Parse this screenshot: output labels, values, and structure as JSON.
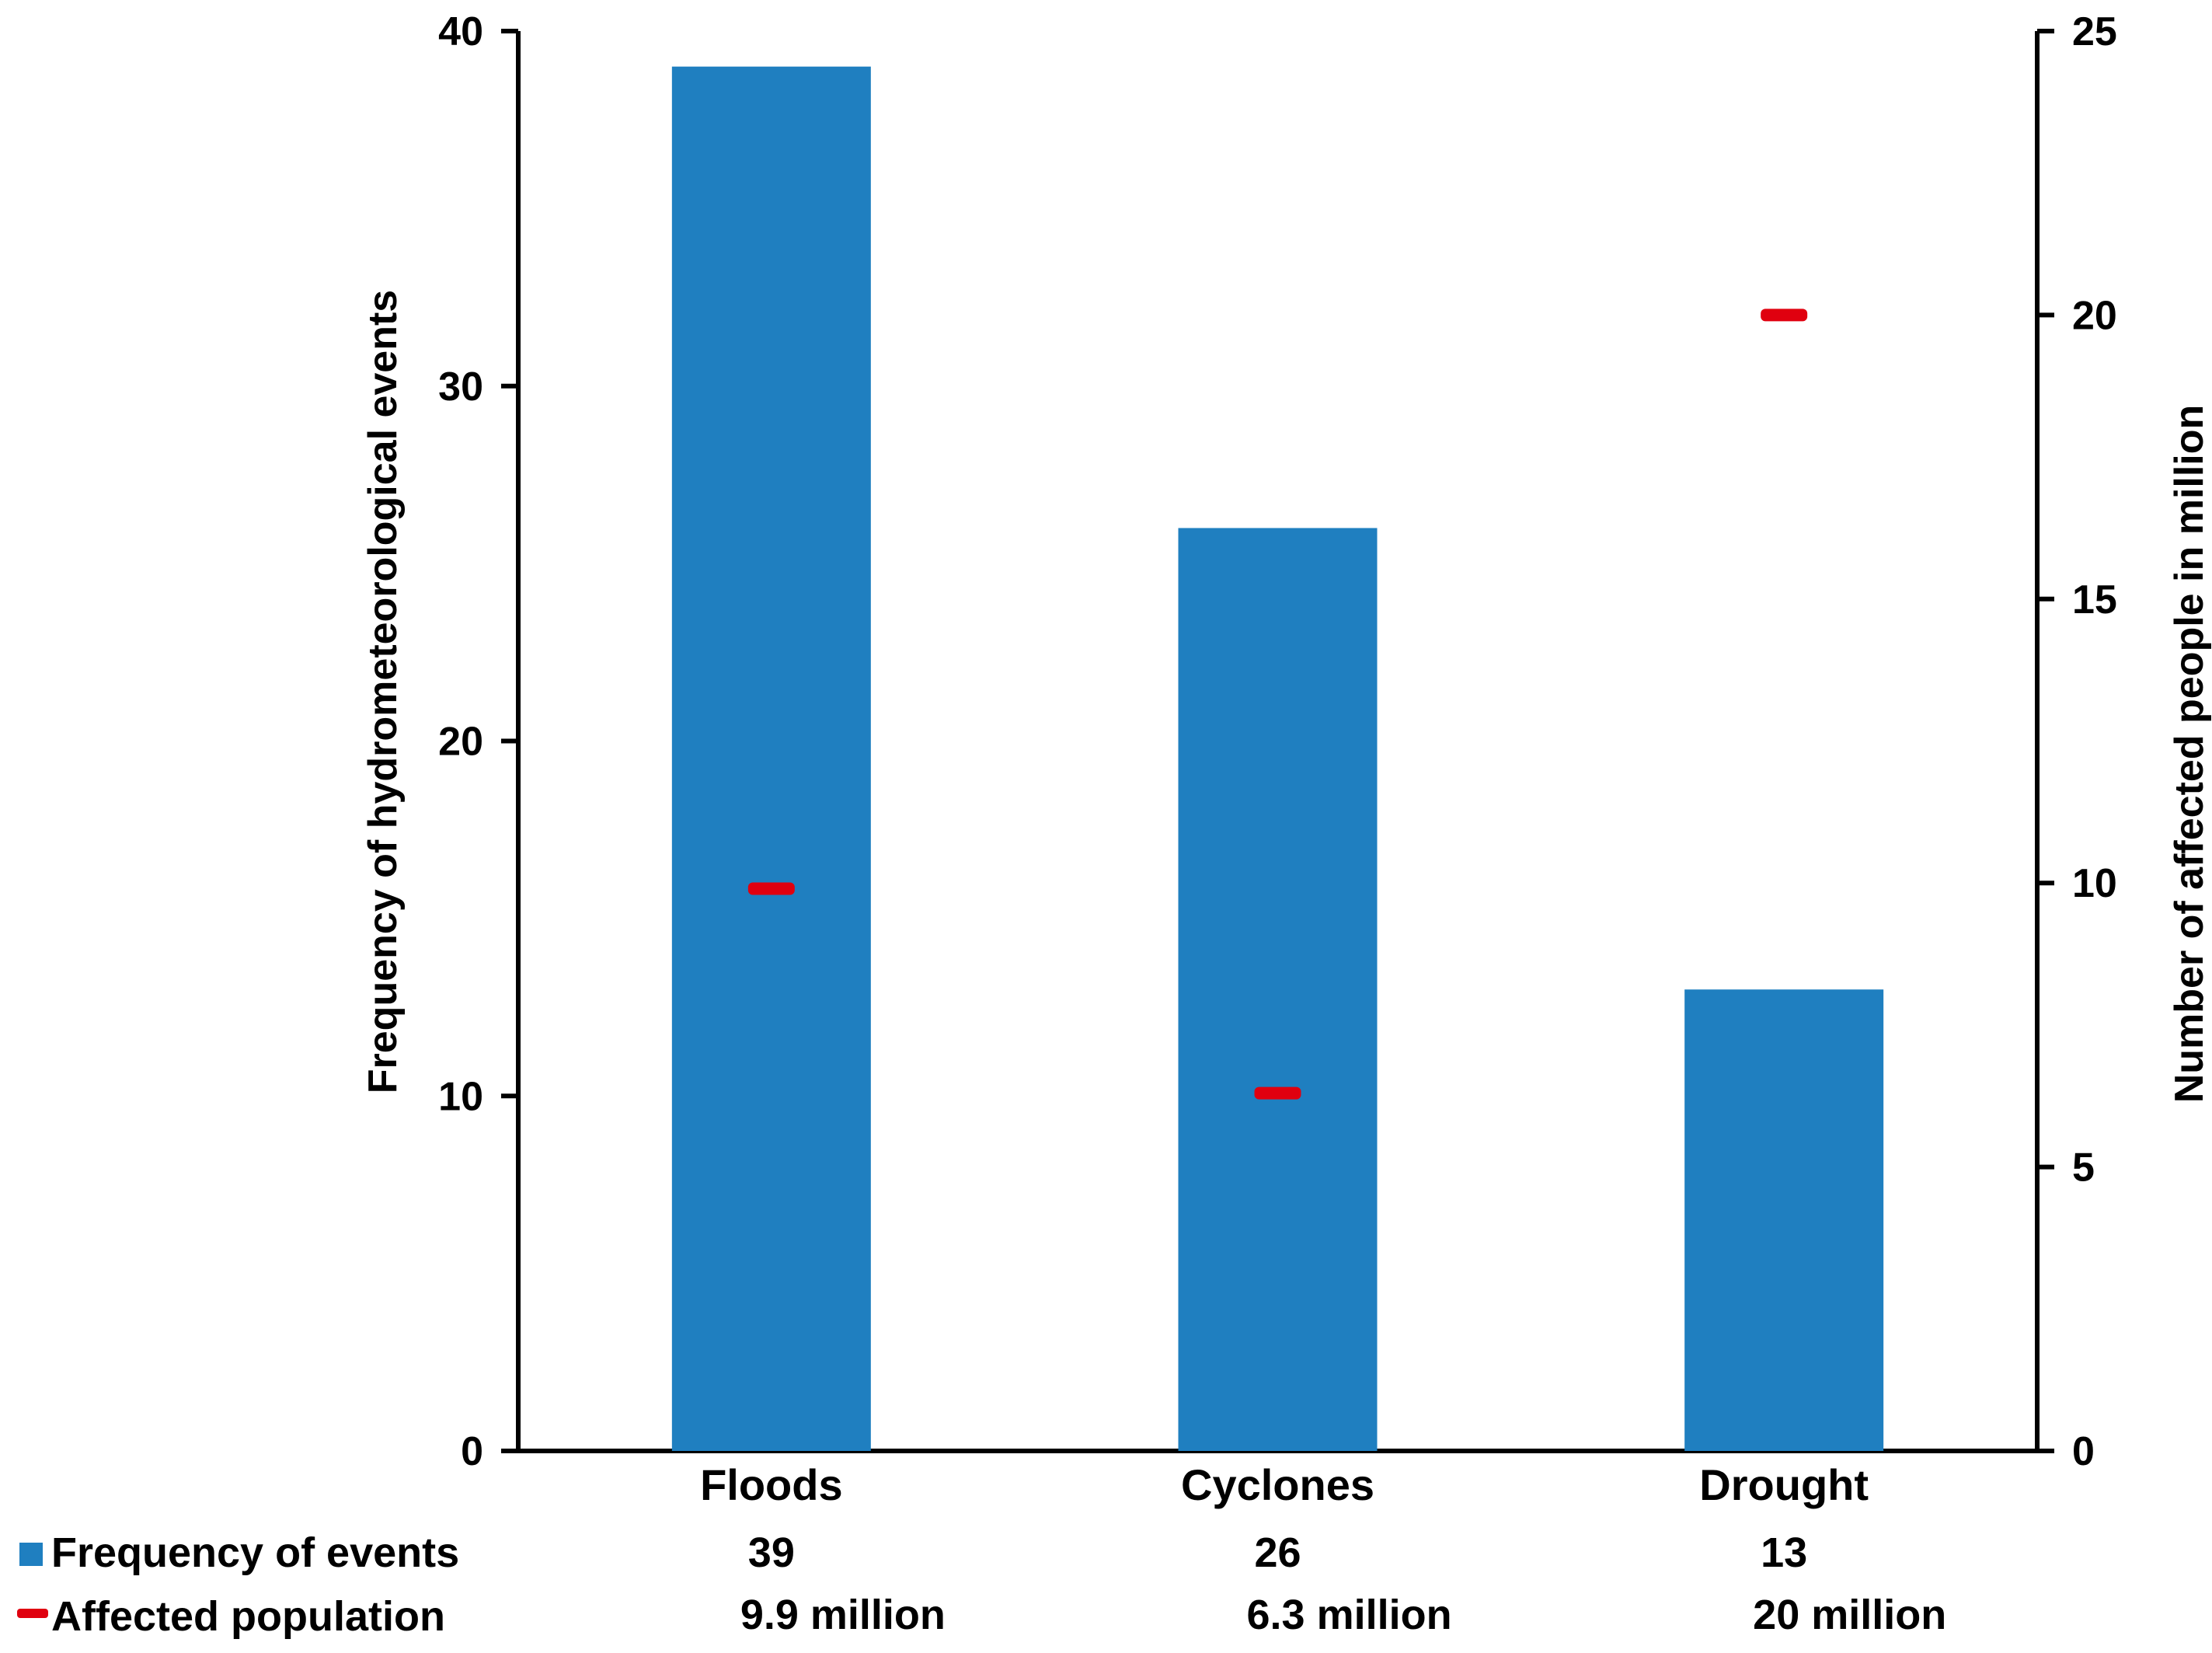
{
  "chart_data": {
    "type": "bar",
    "categories": [
      "Floods",
      "Cyclones",
      "Drought"
    ],
    "series": [
      {
        "name": "Frequency of events",
        "axis": "left",
        "kind": "bar",
        "color": "#1f7fc0",
        "values": [
          39,
          26,
          13
        ]
      },
      {
        "name": "Affected population",
        "axis": "right",
        "kind": "marker",
        "color": "#e0000f",
        "values": [
          9.9,
          6.3,
          20
        ]
      }
    ],
    "ylabel": "Frequency of hydrometeorological events",
    "y2label": "Number of affected people in million",
    "ylim": [
      0,
      40
    ],
    "y2lim": [
      0,
      25
    ],
    "yticks": [
      "0",
      "10",
      "20",
      "30",
      "40"
    ],
    "y2ticks": [
      "0",
      "5",
      "10",
      "15",
      "20",
      "25"
    ],
    "data_table": {
      "rows": [
        {
          "legend": "Frequency of events",
          "icon": "blue-square-icon",
          "cells": [
            "39",
            "26",
            "13"
          ]
        },
        {
          "legend": "Affected population",
          "icon": "red-dash-icon",
          "cells": [
            "9.9 million",
            "6.3 million",
            "20 million"
          ]
        }
      ]
    }
  }
}
